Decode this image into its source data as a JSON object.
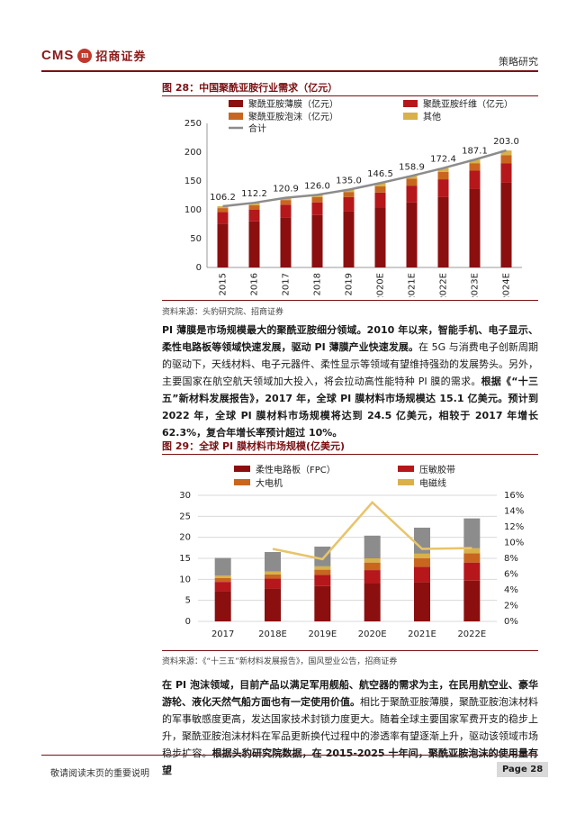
{
  "header": {
    "brand_latin": "CMS",
    "brand_mark": "m",
    "brand_name": "招商证券",
    "section": "策略研究"
  },
  "fig28": {
    "title": "图 28：中国聚酰亚胺行业需求（亿元）",
    "source": "资料来源：头豹研究院、招商证券",
    "legend": [
      "聚酰亚胺薄膜（亿元）",
      "聚酰亚胺纤维（亿元）",
      "聚酰亚胺泡沫（亿元）",
      "其他",
      "合计"
    ],
    "colors": {
      "film": "#8b0f0f",
      "fiber": "#b5171b",
      "foam": "#c8661f",
      "other": "#d8b14a",
      "total": "#8c8c8c"
    },
    "chart_data": {
      "type": "bar",
      "categories": [
        "2015",
        "2016",
        "2017",
        "2018",
        "2019",
        "2020E",
        "2021E",
        "2022E",
        "2023E",
        "2024E"
      ],
      "series": [
        {
          "name": "聚酰亚胺薄膜（亿元）",
          "values": [
            76,
            80,
            87,
            91,
            97,
            104,
            113,
            122,
            136,
            147
          ]
        },
        {
          "name": "聚酰亚胺纤维（亿元）",
          "values": [
            20,
            20,
            22,
            22,
            25,
            26,
            29,
            31,
            32,
            34
          ]
        },
        {
          "name": "聚酰亚胺泡沫（亿元）",
          "values": [
            7,
            8,
            8,
            9,
            9,
            11,
            12,
            13,
            13,
            14
          ]
        },
        {
          "name": "其他",
          "values": [
            3.2,
            4.2,
            3.9,
            4.0,
            4.0,
            5.5,
            4.9,
            6.4,
            6.1,
            8.0
          ]
        },
        {
          "name": "合计",
          "values": [
            106.2,
            112.2,
            120.9,
            126.0,
            135.0,
            146.5,
            158.9,
            172.4,
            187.1,
            203.0
          ]
        }
      ],
      "data_labels": [
        "106.2",
        "112.2",
        "120.9",
        "126.0",
        "135.0",
        "146.5",
        "158.9",
        "172.4",
        "187.1",
        "203.0"
      ],
      "ylim": [
        0,
        250
      ],
      "yticks": [
        "0",
        "50",
        "100",
        "150",
        "200",
        "250"
      ],
      "grid": false,
      "legend_position": "top"
    }
  },
  "para1": {
    "b1": "PI 薄膜是市场规模最大的聚酰亚胺细分领域。2010 年以来，智能手机、电子显示、柔性电路板等领域快速发展，驱动 PI 薄膜产业快速发展。",
    "t1": "在 5G 与消费电子创新周期的驱动下，天线材料、电子元器件、柔性显示等领域有望维持强劲的发展势头。另外，主要国家在航空航天领域加大投入，将会拉动高性能特种 PI 膜的需求。",
    "b2": "根据《“十三五”新材料发展报告》，2017 年，全球 PI 膜材料市场规模达 15.1 亿美元。预计到 2022 年，全球 PI 膜材料市场规模将达到 24.5 亿美元，相较于 2017 年增长 62.3%，复合年增长率预计超过 10%。"
  },
  "fig29": {
    "title": "图 29：全球 PI 膜材料市场规模(亿美元)",
    "source": "资料来源：《“十三五”新材料发展报告》，国风塑业公告，招商证券",
    "legend": [
      "柔性电路板（FPC）",
      "压敏胶带",
      "大电机",
      "电磁线"
    ],
    "colors": {
      "fpc": "#8b0f0f",
      "tape": "#b5171b",
      "motor": "#c8661f",
      "wire": "#d8b14a",
      "other": "#8c8c8c",
      "line": "#e8c46a"
    },
    "chart_data": {
      "type": "bar",
      "categories": [
        "2017",
        "2018E",
        "2019E",
        "2020E",
        "2021E",
        "2022E"
      ],
      "series": [
        {
          "name": "柔性电路板（FPC）",
          "values": [
            7.2,
            7.8,
            8.4,
            9.0,
            9.3,
            9.7
          ]
        },
        {
          "name": "压敏胶带",
          "values": [
            2.2,
            2.4,
            2.7,
            3.2,
            3.7,
            4.3
          ]
        },
        {
          "name": "大电机",
          "values": [
            0.9,
            1.0,
            1.2,
            1.8,
            2.0,
            2.2
          ]
        },
        {
          "name": "电磁线",
          "values": [
            0.6,
            0.7,
            0.8,
            1.0,
            1.1,
            1.2
          ]
        },
        {
          "values": [
            4.2,
            4.6,
            4.7,
            5.4,
            6.2,
            7.1
          ]
        },
        {
          "values": [
            null,
            9.2,
            7.9,
            15.1,
            9.2,
            9.3
          ],
          "axis": "right",
          "unit": "%"
        }
      ],
      "ylim": [
        0,
        30
      ],
      "yticks": [
        "0",
        "5",
        "10",
        "15",
        "20",
        "25",
        "30"
      ],
      "y2lim": [
        0,
        16
      ],
      "y2ticks": [
        "0%",
        "2%",
        "4%",
        "6%",
        "8%",
        "10%",
        "12%",
        "14%",
        "16%"
      ],
      "grid": true,
      "legend_position": "top"
    }
  },
  "para2": {
    "b1": "在 PI 泡沫领域，目前产品以满足军用舰船、航空器的需求为主，在民用航空业、豪华游轮、液化天然气船方面也有一定使用价值。",
    "t1": "相比于聚酰亚胺薄膜，聚酰亚胺泡沫材料的军事敏感度更高，发达国家技术封锁力度更大。随着全球主要国家军费开支的稳步上升，聚酰亚胺泡沫材料在军品更新换代过程中的渗透率有望逐渐上升，驱动该领域市场稳步扩容。",
    "b2": "根据头豹研究院数据，在 2015-2025 十年间，聚酰亚胺泡沫的使用量有望"
  },
  "footer": {
    "note": "敬请阅读末页的重要说明",
    "page": "Page 28"
  }
}
